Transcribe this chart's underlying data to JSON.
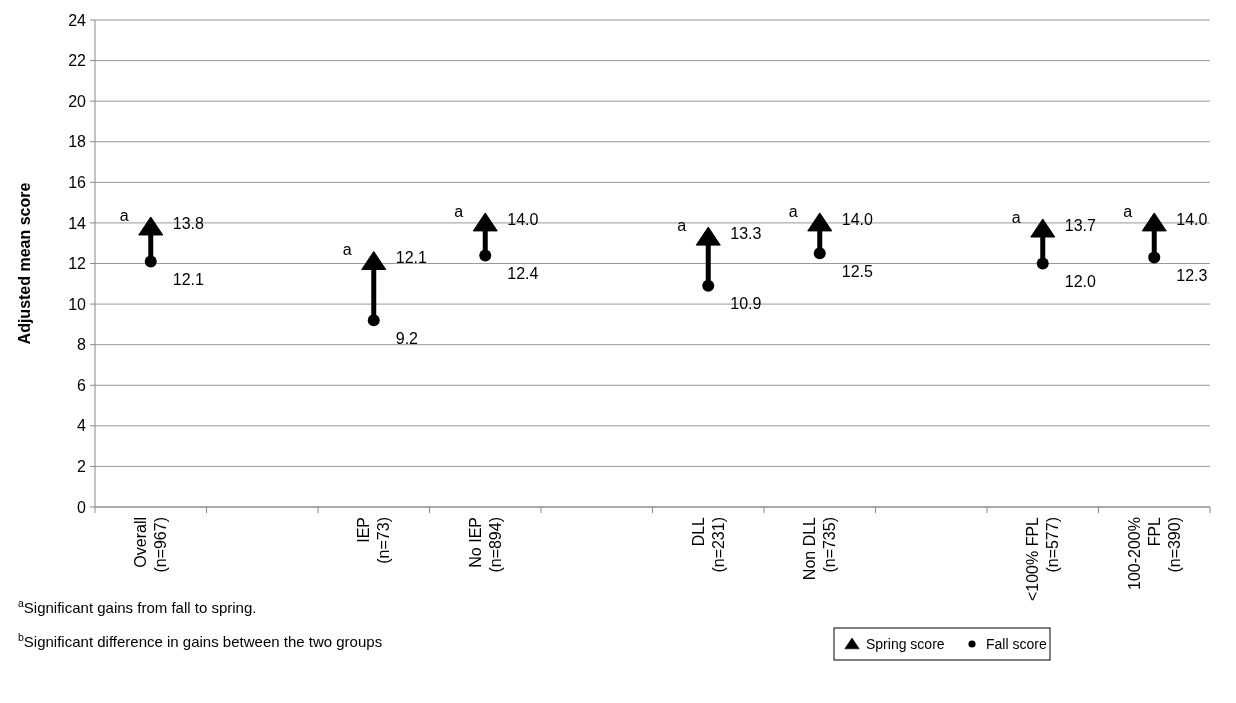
{
  "chart_data": {
    "type": "scatter",
    "ylabel": "Adjusted mean score",
    "categories": [
      "Overall\n(n=967)",
      null,
      "IEP\n(n=73)",
      "No IEP\n(n=894)",
      null,
      "DLL\n(n=231)",
      "Non DLL\n(n=735)",
      null,
      "<100% FPL\n(n=577)",
      "100-200%\nFPL\n(n=390)"
    ],
    "series": [
      {
        "name": "Spring score",
        "color": "#000000",
        "marker": "triangle",
        "values": [
          13.8,
          null,
          12.1,
          14.0,
          null,
          13.3,
          14.0,
          null,
          13.7,
          14.0
        ],
        "value_labels": [
          "13.8",
          null,
          "12.1",
          "14.0",
          null,
          "13.3",
          "14.0",
          null,
          "13.7",
          "14.0"
        ]
      },
      {
        "name": "Fall score",
        "color": "#000000",
        "marker": "circle",
        "values": [
          12.1,
          null,
          9.2,
          12.4,
          null,
          10.9,
          12.5,
          null,
          12.0,
          12.3
        ],
        "value_labels": [
          "12.1",
          null,
          "9.2",
          "12.4",
          null,
          "10.9",
          "12.5",
          null,
          "12.0",
          "12.3"
        ]
      }
    ],
    "ylim": [
      0,
      24
    ],
    "yticks": [
      0,
      2,
      4,
      6,
      8,
      10,
      12,
      14,
      16,
      18,
      20,
      22,
      24
    ],
    "grid": "y",
    "legend": "bottom right",
    "annotations": [
      {
        "text": "a",
        "x": "Overall\n(n=967)",
        "y": 13.8
      },
      {
        "text": "a",
        "x": "IEP\n(n=73)",
        "y": 12.1
      },
      {
        "text": "a",
        "x": "No IEP\n(n=894)",
        "y": 14.0
      },
      {
        "text": "a",
        "x": "DLL\n(n=231)",
        "y": 13.3
      },
      {
        "text": "a",
        "x": "Non DLL\n(n=735)",
        "y": 14.0
      },
      {
        "text": "a",
        "x": "<100% FPL\n(n=577)",
        "y": 13.7
      },
      {
        "text": "a",
        "x": "100-200%\nFPL\n(n=390)",
        "y": 14.0
      },
      "$^{a}$Significant gains from fall to spring.",
      "$^{b}$Significant difference in gains between the two groups"
    ]
  }
}
